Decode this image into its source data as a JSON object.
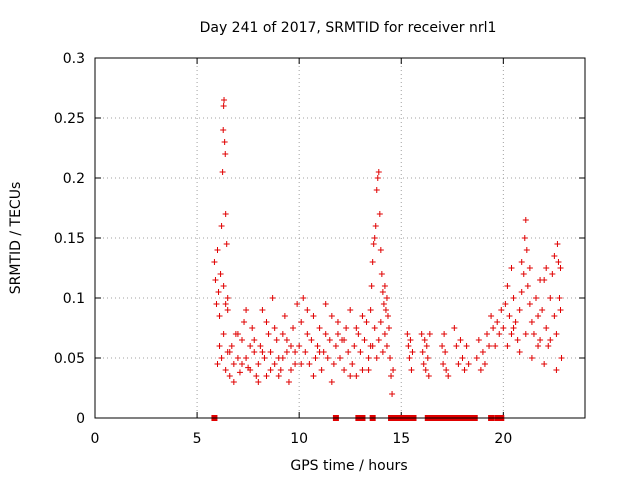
{
  "chart_data": {
    "type": "scatter",
    "title": "Day 241 of 2017, SRMTID for receiver nrl1",
    "xlabel": "GPS time / hours",
    "ylabel": "SRMTID / TECUs",
    "xlim": [
      0,
      24
    ],
    "ylim": [
      0,
      0.3
    ],
    "xticks": [
      0,
      5,
      10,
      15,
      20
    ],
    "xtick_labels": [
      "0",
      "5",
      "10",
      "15",
      "20"
    ],
    "yticks": [
      0,
      0.05,
      0.1,
      0.15,
      0.2,
      0.25,
      0.3
    ],
    "ytick_labels": [
      "0",
      "0.05",
      "0.1",
      "0.15",
      "0.2",
      "0.25",
      "0.3"
    ],
    "grid": true,
    "marker": "+",
    "color": "#e00000",
    "series": [
      {
        "name": "SRMTID",
        "points": [
          [
            5.85,
            0.13
          ],
          [
            5.9,
            0.115
          ],
          [
            5.95,
            0.095
          ],
          [
            6.0,
            0.14
          ],
          [
            6.05,
            0.105
          ],
          [
            6.1,
            0.085
          ],
          [
            6.15,
            0.12
          ],
          [
            6.2,
            0.16
          ],
          [
            6.25,
            0.205
          ],
          [
            6.28,
            0.24
          ],
          [
            6.3,
            0.26
          ],
          [
            6.32,
            0.265
          ],
          [
            6.35,
            0.23
          ],
          [
            6.38,
            0.22
          ],
          [
            6.4,
            0.17
          ],
          [
            6.45,
            0.145
          ],
          [
            6.5,
            0.1
          ],
          [
            6.3,
            0.11
          ],
          [
            6.4,
            0.095
          ],
          [
            6.5,
            0.09
          ],
          [
            6.0,
            0.045
          ],
          [
            6.1,
            0.06
          ],
          [
            6.2,
            0.05
          ],
          [
            6.3,
            0.07
          ],
          [
            6.4,
            0.04
          ],
          [
            6.5,
            0.055
          ],
          [
            6.6,
            0.035
          ],
          [
            6.7,
            0.06
          ],
          [
            6.8,
            0.045
          ],
          [
            6.9,
            0.07
          ],
          [
            7.0,
            0.05
          ],
          [
            7.1,
            0.038
          ],
          [
            7.2,
            0.065
          ],
          [
            7.3,
            0.08
          ],
          [
            7.4,
            0.05
          ],
          [
            7.5,
            0.042
          ],
          [
            7.6,
            0.06
          ],
          [
            7.7,
            0.075
          ],
          [
            7.8,
            0.055
          ],
          [
            7.9,
            0.035
          ],
          [
            8.0,
            0.045
          ],
          [
            8.1,
            0.06
          ],
          [
            8.2,
            0.09
          ],
          [
            8.3,
            0.05
          ],
          [
            8.4,
            0.035
          ],
          [
            8.5,
            0.07
          ],
          [
            8.6,
            0.055
          ],
          [
            8.7,
            0.1
          ],
          [
            8.8,
            0.045
          ],
          [
            8.9,
            0.065
          ],
          [
            9.0,
            0.05
          ],
          [
            9.1,
            0.04
          ],
          [
            9.2,
            0.07
          ],
          [
            9.3,
            0.085
          ],
          [
            9.4,
            0.055
          ],
          [
            9.5,
            0.03
          ],
          [
            9.6,
            0.06
          ],
          [
            9.7,
            0.075
          ],
          [
            9.8,
            0.045
          ],
          [
            9.9,
            0.095
          ],
          [
            6.6,
            0.055
          ],
          [
            6.8,
            0.03
          ],
          [
            7.0,
            0.07
          ],
          [
            7.2,
            0.045
          ],
          [
            7.4,
            0.09
          ],
          [
            7.6,
            0.04
          ],
          [
            7.8,
            0.065
          ],
          [
            8.0,
            0.03
          ],
          [
            8.2,
            0.055
          ],
          [
            8.4,
            0.08
          ],
          [
            8.6,
            0.04
          ],
          [
            8.8,
            0.075
          ],
          [
            9.0,
            0.035
          ],
          [
            9.2,
            0.05
          ],
          [
            9.4,
            0.065
          ],
          [
            9.6,
            0.04
          ],
          [
            9.8,
            0.055
          ],
          [
            10.0,
            0.06
          ],
          [
            10.1,
            0.08
          ],
          [
            10.2,
            0.1
          ],
          [
            10.3,
            0.055
          ],
          [
            10.4,
            0.07
          ],
          [
            10.5,
            0.045
          ],
          [
            10.6,
            0.065
          ],
          [
            10.7,
            0.085
          ],
          [
            10.8,
            0.05
          ],
          [
            10.9,
            0.06
          ],
          [
            11.0,
            0.075
          ],
          [
            11.1,
            0.04
          ],
          [
            11.2,
            0.055
          ],
          [
            11.3,
            0.07
          ],
          [
            11.4,
            0.05
          ],
          [
            11.5,
            0.065
          ],
          [
            11.6,
            0.085
          ],
          [
            11.7,
            0.045
          ],
          [
            11.8,
            0.06
          ],
          [
            11.9,
            0.07
          ],
          [
            12.0,
            0.05
          ],
          [
            12.1,
            0.065
          ],
          [
            12.2,
            0.04
          ],
          [
            12.3,
            0.075
          ],
          [
            12.4,
            0.055
          ],
          [
            12.5,
            0.09
          ],
          [
            12.6,
            0.045
          ],
          [
            12.7,
            0.06
          ],
          [
            12.8,
            0.035
          ],
          [
            12.9,
            0.07
          ],
          [
            13.0,
            0.055
          ],
          [
            13.1,
            0.04
          ],
          [
            13.2,
            0.065
          ],
          [
            13.3,
            0.08
          ],
          [
            13.4,
            0.05
          ],
          [
            13.5,
            0.06
          ],
          [
            10.1,
            0.045
          ],
          [
            10.4,
            0.09
          ],
          [
            10.7,
            0.035
          ],
          [
            11.0,
            0.055
          ],
          [
            11.3,
            0.095
          ],
          [
            11.6,
            0.03
          ],
          [
            11.9,
            0.08
          ],
          [
            12.2,
            0.065
          ],
          [
            12.5,
            0.035
          ],
          [
            12.8,
            0.075
          ],
          [
            13.1,
            0.085
          ],
          [
            13.4,
            0.04
          ],
          [
            13.5,
            0.09
          ],
          [
            13.55,
            0.11
          ],
          [
            13.6,
            0.13
          ],
          [
            13.65,
            0.145
          ],
          [
            13.7,
            0.15
          ],
          [
            13.75,
            0.16
          ],
          [
            13.8,
            0.19
          ],
          [
            13.85,
            0.2
          ],
          [
            13.9,
            0.205
          ],
          [
            13.95,
            0.17
          ],
          [
            14.0,
            0.14
          ],
          [
            14.05,
            0.12
          ],
          [
            14.1,
            0.105
          ],
          [
            14.15,
            0.095
          ],
          [
            14.2,
            0.11
          ],
          [
            14.25,
            0.09
          ],
          [
            14.3,
            0.1
          ],
          [
            14.35,
            0.085
          ],
          [
            14.4,
            0.075
          ],
          [
            14.45,
            0.05
          ],
          [
            14.5,
            0.035
          ],
          [
            14.55,
            0.02
          ],
          [
            14.6,
            0.04
          ],
          [
            13.6,
            0.06
          ],
          [
            13.7,
            0.075
          ],
          [
            13.8,
            0.05
          ],
          [
            13.9,
            0.065
          ],
          [
            14.0,
            0.08
          ],
          [
            14.1,
            0.055
          ],
          [
            14.2,
            0.07
          ],
          [
            14.3,
            0.06
          ],
          [
            15.3,
            0.07
          ],
          [
            15.35,
            0.06
          ],
          [
            15.4,
            0.05
          ],
          [
            15.45,
            0.065
          ],
          [
            15.5,
            0.04
          ],
          [
            15.55,
            0.055
          ],
          [
            16.0,
            0.07
          ],
          [
            16.05,
            0.055
          ],
          [
            16.1,
            0.045
          ],
          [
            16.15,
            0.065
          ],
          [
            16.2,
            0.04
          ],
          [
            16.25,
            0.06
          ],
          [
            16.3,
            0.05
          ],
          [
            16.35,
            0.035
          ],
          [
            16.4,
            0.07
          ],
          [
            17.0,
            0.06
          ],
          [
            17.05,
            0.045
          ],
          [
            17.1,
            0.07
          ],
          [
            17.15,
            0.055
          ],
          [
            17.2,
            0.04
          ],
          [
            17.3,
            0.035
          ],
          [
            17.6,
            0.075
          ],
          [
            17.7,
            0.06
          ],
          [
            17.8,
            0.045
          ],
          [
            17.9,
            0.065
          ],
          [
            18.0,
            0.05
          ],
          [
            18.1,
            0.04
          ],
          [
            18.2,
            0.06
          ],
          [
            18.3,
            0.045
          ],
          [
            18.7,
            0.05
          ],
          [
            18.8,
            0.065
          ],
          [
            18.9,
            0.04
          ],
          [
            19.0,
            0.055
          ],
          [
            19.1,
            0.045
          ],
          [
            19.2,
            0.07
          ],
          [
            19.3,
            0.06
          ],
          [
            19.4,
            0.085
          ],
          [
            19.5,
            0.075
          ],
          [
            19.6,
            0.06
          ],
          [
            19.7,
            0.08
          ],
          [
            19.8,
            0.07
          ],
          [
            19.9,
            0.09
          ],
          [
            20.0,
            0.075
          ],
          [
            20.1,
            0.095
          ],
          [
            20.2,
            0.11
          ],
          [
            20.3,
            0.085
          ],
          [
            20.4,
            0.07
          ],
          [
            20.5,
            0.1
          ],
          [
            20.6,
            0.08
          ],
          [
            20.7,
            0.065
          ],
          [
            20.8,
            0.09
          ],
          [
            20.9,
            0.13
          ],
          [
            21.0,
            0.12
          ],
          [
            21.05,
            0.15
          ],
          [
            21.1,
            0.165
          ],
          [
            21.15,
            0.14
          ],
          [
            21.2,
            0.11
          ],
          [
            21.3,
            0.095
          ],
          [
            21.4,
            0.08
          ],
          [
            21.5,
            0.07
          ],
          [
            21.6,
            0.1
          ],
          [
            21.7,
            0.085
          ],
          [
            21.8,
            0.065
          ],
          [
            21.9,
            0.09
          ],
          [
            22.0,
            0.115
          ],
          [
            22.1,
            0.075
          ],
          [
            22.2,
            0.06
          ],
          [
            22.3,
            0.1
          ],
          [
            22.4,
            0.12
          ],
          [
            22.5,
            0.085
          ],
          [
            22.6,
            0.07
          ],
          [
            22.65,
            0.145
          ],
          [
            22.7,
            0.13
          ],
          [
            22.75,
            0.1
          ],
          [
            22.8,
            0.09
          ],
          [
            22.85,
            0.05
          ],
          [
            20.2,
            0.06
          ],
          [
            20.5,
            0.075
          ],
          [
            20.8,
            0.055
          ],
          [
            21.1,
            0.07
          ],
          [
            21.4,
            0.05
          ],
          [
            21.7,
            0.06
          ],
          [
            22.0,
            0.045
          ],
          [
            22.3,
            0.065
          ],
          [
            22.6,
            0.04
          ],
          [
            22.8,
            0.125
          ],
          [
            20.4,
            0.125
          ],
          [
            20.9,
            0.105
          ],
          [
            21.3,
            0.125
          ],
          [
            21.8,
            0.115
          ],
          [
            22.1,
            0.125
          ],
          [
            22.5,
            0.135
          ]
        ]
      }
    ],
    "zero_markers_hours": [
      5.85,
      11.8,
      12.9,
      13.0,
      13.1,
      13.6,
      14.5,
      14.6,
      14.7,
      14.8,
      14.9,
      15.0,
      15.2,
      15.3,
      15.4,
      15.5,
      15.6,
      16.3,
      16.4,
      16.5,
      16.6,
      16.7,
      16.8,
      16.9,
      17.0,
      17.1,
      17.2,
      17.3,
      17.4,
      17.6,
      17.7,
      17.8,
      17.9,
      18.0,
      18.1,
      18.2,
      18.3,
      18.4,
      18.5,
      18.6,
      19.4,
      19.7,
      19.8,
      19.9
    ]
  }
}
